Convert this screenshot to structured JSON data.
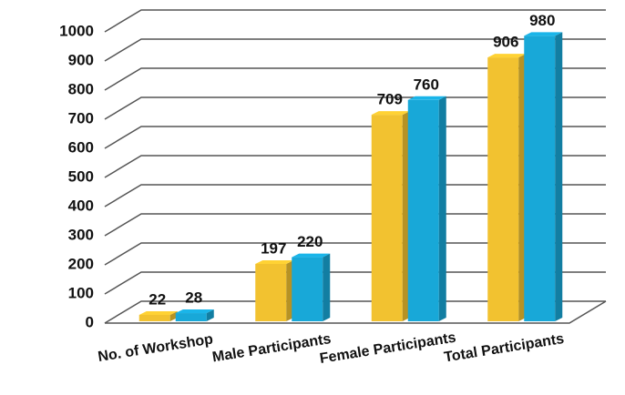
{
  "chart_data": {
    "type": "bar3d",
    "categories": [
      "No. of Workshop",
      "Male Participants",
      "Female Participants",
      "Total Participants"
    ],
    "series": [
      {
        "color": "#f2c230",
        "values": [
          22,
          197,
          709,
          906
        ]
      },
      {
        "color": "#18a8d8",
        "values": [
          28,
          220,
          760,
          980
        ]
      }
    ],
    "ylim": [
      0,
      1100
    ],
    "yticks": [
      0,
      100,
      200,
      300,
      400,
      500,
      600,
      700,
      800,
      900,
      1000
    ],
    "grid": true
  }
}
